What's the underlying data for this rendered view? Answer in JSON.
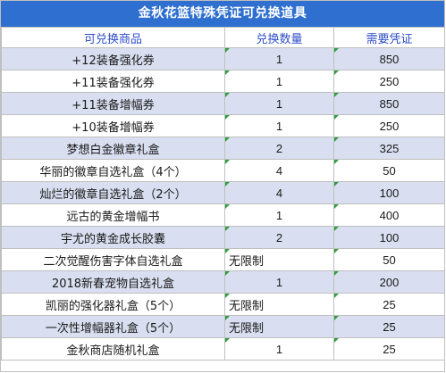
{
  "title": "金秋花篮特殊凭证可兑换道具",
  "headers": [
    "可兑换商品",
    "兑换数量",
    "需要凭证"
  ],
  "rows": [
    {
      "item": "+12装备强化券",
      "qty": "1",
      "cost": "850"
    },
    {
      "item": "+11装备强化券",
      "qty": "1",
      "cost": "250"
    },
    {
      "item": "+11装备增幅券",
      "qty": "1",
      "cost": "850"
    },
    {
      "item": "+10装备增幅券",
      "qty": "1",
      "cost": "250"
    },
    {
      "item": "梦想白金徽章礼盒",
      "qty": "2",
      "cost": "325"
    },
    {
      "item": "华丽的徽章自选礼盒（4个）",
      "qty": "4",
      "cost": "50"
    },
    {
      "item": "灿烂的徽章自选礼盒（2个）",
      "qty": "4",
      "cost": "100"
    },
    {
      "item": "远古的黄金增幅书",
      "qty": "1",
      "cost": "400"
    },
    {
      "item": "宇尤的黄金成长胶囊",
      "qty": "2",
      "cost": "100"
    },
    {
      "item": "二次觉醒伤害字体自选礼盒",
      "qty": "无限制",
      "cost": "50"
    },
    {
      "item": "2018新春宠物自选礼盒",
      "qty": "1",
      "cost": "200"
    },
    {
      "item": "凯丽的强化器礼盒（5个）",
      "qty": "无限制",
      "cost": "25"
    },
    {
      "item": "一次性增幅器礼盒（5个）",
      "qty": "无限制",
      "cost": "25"
    },
    {
      "item": "金秋商店随机礼盒",
      "qty": "1",
      "cost": "25"
    }
  ]
}
